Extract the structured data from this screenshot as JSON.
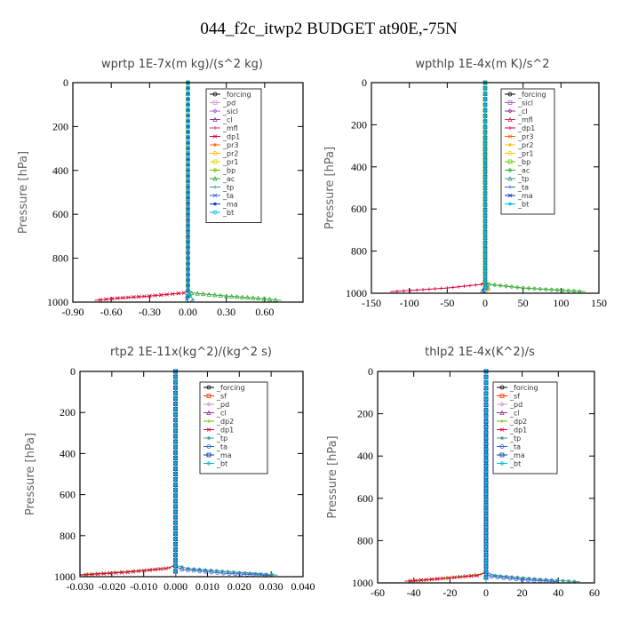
{
  "figure_title": "044_f2c_itwp2  BUDGET at90E,-75N",
  "colors": {
    "_forcing": "#000000",
    "_pd": "#cc99cc",
    "_sicl": "#9966cc",
    "_cl": "#993399",
    "_mfl": "#cc3366",
    "_dp1": "#dd0033",
    "_pr3": "#ff6600",
    "_pr2": "#ffbb00",
    "_pr1": "#dddd00",
    "_bp": "#66cc00",
    "_ac": "#33aa33",
    "_tp": "#339999",
    "_ta": "#3366cc",
    "_ma": "#0033aa",
    "_bt": "#00bbdd",
    "_sf": "#ff3300",
    "_dp2": "#66bb00"
  },
  "chart_data": [
    {
      "type": "line",
      "title": "wprtp  1E-7x(m kg)/(s^2 kg)",
      "ylabel": "Pressure [hPa]",
      "xlim": [
        -0.9,
        0.9
      ],
      "ylim": [
        1000,
        0
      ],
      "xticks": [
        -0.9,
        -0.6,
        -0.3,
        0.0,
        0.3,
        0.6
      ],
      "xtick_labels": [
        "-0.90",
        "-0.60",
        "-0.30",
        "0.00",
        "0.30",
        "0.60"
      ],
      "yticks": [
        0,
        200,
        400,
        600,
        800,
        1000
      ],
      "ytick_labels": [
        "0",
        "200",
        "400",
        "600",
        "800",
        "1000"
      ],
      "legend_position": "top-right",
      "legend": [
        "_forcing",
        "_pd",
        "_sicl",
        "_cl",
        "_mfl",
        "_dp1",
        "_pr3",
        "_pr2",
        "_pr1",
        "_bp",
        "_ac",
        "_tp",
        "_ta",
        "_ma",
        "_bt"
      ],
      "series": [
        {
          "name": "_forcing",
          "x": [
            0,
            0,
            0
          ],
          "y": [
            0,
            500,
            1000
          ]
        },
        {
          "name": "_pd",
          "x": [
            0,
            0,
            0
          ],
          "y": [
            0,
            500,
            1000
          ]
        },
        {
          "name": "_sicl",
          "x": [
            0,
            0,
            0
          ],
          "y": [
            0,
            500,
            1000
          ]
        },
        {
          "name": "_cl",
          "x": [
            0,
            0,
            0
          ],
          "y": [
            0,
            500,
            1000
          ]
        },
        {
          "name": "_mfl",
          "x": [
            0,
            0,
            0
          ],
          "y": [
            0,
            500,
            1000
          ]
        },
        {
          "name": "_dp1",
          "x": [
            0,
            0,
            -0.03,
            -0.3,
            -0.55,
            -0.73
          ],
          "y": [
            0,
            940,
            958,
            972,
            982,
            992
          ]
        },
        {
          "name": "_pr3",
          "x": [
            0,
            0,
            0
          ],
          "y": [
            0,
            500,
            1000
          ]
        },
        {
          "name": "_pr2",
          "x": [
            0,
            0,
            0
          ],
          "y": [
            0,
            500,
            1000
          ]
        },
        {
          "name": "_pr1",
          "x": [
            0,
            0,
            0
          ],
          "y": [
            0,
            500,
            1000
          ]
        },
        {
          "name": "_bp",
          "x": [
            0,
            0,
            0
          ],
          "y": [
            0,
            500,
            1000
          ]
        },
        {
          "name": "_ac",
          "x": [
            0,
            0,
            0.03,
            0.3,
            0.55,
            0.73
          ],
          "y": [
            0,
            940,
            958,
            972,
            982,
            992
          ]
        },
        {
          "name": "_tp",
          "x": [
            0,
            0,
            0.02,
            0.04,
            0.01
          ],
          "y": [
            0,
            940,
            970,
            990,
            1000
          ]
        },
        {
          "name": "_ta",
          "x": [
            0,
            0,
            -0.01,
            0
          ],
          "y": [
            0,
            960,
            985,
            1000
          ]
        },
        {
          "name": "_ma",
          "x": [
            0,
            0,
            0
          ],
          "y": [
            0,
            500,
            1000
          ]
        },
        {
          "name": "_bt",
          "x": [
            0,
            0,
            0
          ],
          "y": [
            0,
            500,
            1000
          ]
        }
      ]
    },
    {
      "type": "line",
      "title": "wpthlp  1E-4x(m K)/s^2",
      "ylabel": "Pressure [hPa]",
      "xlim": [
        -150,
        150
      ],
      "ylim": [
        1000,
        0
      ],
      "xticks": [
        -150,
        -100,
        -50,
        0,
        50,
        100,
        150
      ],
      "xtick_labels": [
        "-150",
        "-100",
        "-50",
        "0",
        "50",
        "100",
        "150"
      ],
      "yticks": [
        0,
        200,
        400,
        600,
        800,
        1000
      ],
      "ytick_labels": [
        "0",
        "200",
        "400",
        "600",
        "800",
        "1000"
      ],
      "legend_position": "top-right",
      "legend": [
        "_forcing",
        "_sicl",
        "_cl",
        "_mfl",
        "_dp1",
        "_pr3",
        "_pr2",
        "_pr1",
        "_bp",
        "_ac",
        "_tp",
        "_ta",
        "_ma",
        "_bt"
      ],
      "series": [
        {
          "name": "_forcing",
          "x": [
            0,
            0,
            0
          ],
          "y": [
            0,
            500,
            1000
          ]
        },
        {
          "name": "_sicl",
          "x": [
            0,
            0,
            0
          ],
          "y": [
            0,
            500,
            1000
          ]
        },
        {
          "name": "_cl",
          "x": [
            0,
            0,
            0
          ],
          "y": [
            0,
            500,
            1000
          ]
        },
        {
          "name": "_mfl",
          "x": [
            0,
            0,
            0
          ],
          "y": [
            0,
            500,
            1000
          ]
        },
        {
          "name": "_dp1",
          "x": [
            0,
            0,
            -5,
            -50,
            -90,
            -125
          ],
          "y": [
            0,
            940,
            958,
            975,
            985,
            993
          ]
        },
        {
          "name": "_pr3",
          "x": [
            0,
            0,
            0
          ],
          "y": [
            0,
            500,
            1000
          ]
        },
        {
          "name": "_pr2",
          "x": [
            0,
            0,
            3,
            0
          ],
          "y": [
            0,
            960,
            985,
            1000
          ]
        },
        {
          "name": "_pr1",
          "x": [
            0,
            0,
            0
          ],
          "y": [
            0,
            500,
            1000
          ]
        },
        {
          "name": "_bp",
          "x": [
            0,
            0,
            0
          ],
          "y": [
            0,
            500,
            1000
          ]
        },
        {
          "name": "_ac",
          "x": [
            0,
            0,
            5,
            50,
            95,
            132
          ],
          "y": [
            0,
            940,
            958,
            975,
            985,
            993
          ]
        },
        {
          "name": "_tp",
          "x": [
            0,
            0,
            4,
            -4,
            0
          ],
          "y": [
            0,
            950,
            975,
            990,
            1000
          ]
        },
        {
          "name": "_ta",
          "x": [
            0,
            0,
            -3,
            0
          ],
          "y": [
            0,
            960,
            985,
            1000
          ]
        },
        {
          "name": "_ma",
          "x": [
            0,
            0,
            0
          ],
          "y": [
            0,
            500,
            1000
          ]
        },
        {
          "name": "_bt",
          "x": [
            0,
            0,
            0
          ],
          "y": [
            0,
            500,
            1000
          ]
        }
      ]
    },
    {
      "type": "line",
      "title": "rtp2  1E-11x(kg^2)/(kg^2 s)",
      "ylabel": "Pressure [hPa]",
      "xlim": [
        -0.03,
        0.04
      ],
      "ylim": [
        1000,
        0
      ],
      "xticks": [
        -0.03,
        -0.02,
        -0.01,
        0.0,
        0.01,
        0.02,
        0.03,
        0.04
      ],
      "xtick_labels": [
        "-0.030",
        "-0.020",
        "-0.010",
        "0.000",
        "0.010",
        "0.020",
        "0.030",
        "0.040"
      ],
      "yticks": [
        0,
        200,
        400,
        600,
        800,
        1000
      ],
      "ytick_labels": [
        "0",
        "200",
        "400",
        "600",
        "800",
        "1000"
      ],
      "legend_position": "top-right",
      "legend": [
        "_forcing",
        "_sf",
        "_pd",
        "_cl",
        "_dp2",
        "_dp1",
        "_tp",
        "_ta",
        "_ma",
        "_bt"
      ],
      "series": [
        {
          "name": "_forcing",
          "x": [
            0,
            0,
            0
          ],
          "y": [
            0,
            500,
            1000
          ]
        },
        {
          "name": "_sf",
          "x": [
            0,
            0,
            0
          ],
          "y": [
            0,
            500,
            1000
          ]
        },
        {
          "name": "_pd",
          "x": [
            0,
            0,
            0
          ],
          "y": [
            0,
            500,
            1000
          ]
        },
        {
          "name": "_cl",
          "x": [
            0,
            0,
            0
          ],
          "y": [
            0,
            500,
            1000
          ]
        },
        {
          "name": "_dp2",
          "x": [
            0,
            0,
            -0.002,
            -0.015,
            -0.025,
            -0.03
          ],
          "y": [
            0,
            940,
            958,
            975,
            985,
            990
          ]
        },
        {
          "name": "_dp1",
          "x": [
            0,
            0,
            -0.003,
            -0.015,
            -0.03
          ],
          "y": [
            0,
            945,
            960,
            978,
            992
          ]
        },
        {
          "name": "_tp",
          "x": [
            0,
            0,
            0.004,
            0.02,
            0.032
          ],
          "y": [
            0,
            945,
            960,
            980,
            992
          ]
        },
        {
          "name": "_ta",
          "x": [
            0,
            0,
            0.002,
            0.015,
            0.03
          ],
          "y": [
            0,
            950,
            965,
            983,
            995
          ]
        },
        {
          "name": "_ma",
          "x": [
            0,
            0,
            0
          ],
          "y": [
            0,
            500,
            1000
          ]
        },
        {
          "name": "_bt",
          "x": [
            0,
            0,
            0
          ],
          "y": [
            0,
            500,
            1000
          ]
        }
      ]
    },
    {
      "type": "line",
      "title": "thlp2  1E-4x(K^2)/s",
      "ylabel": "Pressure [hPa]",
      "xlim": [
        -60,
        60
      ],
      "ylim": [
        1000,
        0
      ],
      "xticks": [
        -60,
        -40,
        -20,
        0,
        20,
        40,
        60
      ],
      "xtick_labels": [
        "-60",
        "-40",
        "-20",
        "0",
        "20",
        "40",
        "60"
      ],
      "yticks": [
        0,
        200,
        400,
        600,
        800,
        1000
      ],
      "ytick_labels": [
        "0",
        "200",
        "400",
        "600",
        "800",
        "1000"
      ],
      "legend_position": "top-right",
      "legend": [
        "_forcing",
        "_sf",
        "_pd",
        "_cl",
        "_dp2",
        "_dp1",
        "_tp",
        "_ta",
        "_ma",
        "_bt"
      ],
      "series": [
        {
          "name": "_forcing",
          "x": [
            0,
            0,
            0
          ],
          "y": [
            0,
            500,
            1000
          ]
        },
        {
          "name": "_sf",
          "x": [
            0,
            0,
            0
          ],
          "y": [
            0,
            500,
            1000
          ]
        },
        {
          "name": "_pd",
          "x": [
            0,
            0,
            0
          ],
          "y": [
            0,
            500,
            1000
          ]
        },
        {
          "name": "_cl",
          "x": [
            0,
            0,
            0
          ],
          "y": [
            0,
            500,
            1000
          ]
        },
        {
          "name": "_dp2",
          "x": [
            0,
            0,
            -3,
            -25,
            -43
          ],
          "y": [
            0,
            945,
            960,
            980,
            995
          ]
        },
        {
          "name": "_dp1",
          "x": [
            0,
            0,
            -5,
            -30,
            -45
          ],
          "y": [
            0,
            950,
            965,
            983,
            992
          ]
        },
        {
          "name": "_tp",
          "x": [
            0,
            0,
            5,
            30,
            52
          ],
          "y": [
            0,
            950,
            965,
            983,
            995
          ]
        },
        {
          "name": "_ta",
          "x": [
            0,
            0,
            3,
            20,
            40
          ],
          "y": [
            0,
            955,
            970,
            985,
            995
          ]
        },
        {
          "name": "_ma",
          "x": [
            0,
            0,
            0
          ],
          "y": [
            0,
            500,
            1000
          ]
        },
        {
          "name": "_bt",
          "x": [
            0,
            0,
            0
          ],
          "y": [
            0,
            500,
            1000
          ]
        }
      ]
    }
  ]
}
